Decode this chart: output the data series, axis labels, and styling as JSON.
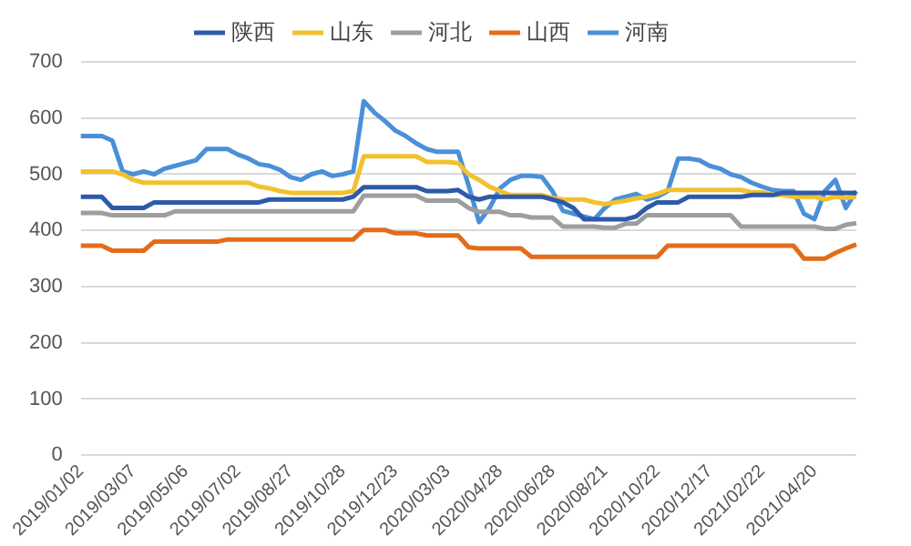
{
  "chart_data": {
    "type": "line",
    "categories": [
      "2019/01/02",
      null,
      null,
      null,
      null,
      "2019/03/07",
      null,
      null,
      null,
      null,
      "2019/05/06",
      null,
      null,
      null,
      null,
      "2019/07/02",
      null,
      null,
      null,
      null,
      "2019/08/27",
      null,
      null,
      null,
      null,
      "2019/10/28",
      null,
      null,
      null,
      null,
      "2019/12/23",
      null,
      null,
      null,
      null,
      "2020/03/03",
      null,
      null,
      null,
      null,
      "2020/04/28",
      null,
      null,
      null,
      null,
      "2020/06/28",
      null,
      null,
      null,
      null,
      "2020/08/21",
      null,
      null,
      null,
      null,
      "2020/10/22",
      null,
      null,
      null,
      null,
      "2020/12/17",
      null,
      null,
      null,
      null,
      "2021/02/22",
      null,
      null,
      null,
      null,
      "2021/04/20",
      null,
      null,
      null,
      null
    ],
    "series": [
      {
        "name": "陕西",
        "color": "#2e5aa8",
        "values": [
          460,
          460,
          460,
          440,
          440,
          440,
          440,
          450,
          450,
          450,
          450,
          450,
          450,
          450,
          450,
          450,
          450,
          450,
          455,
          455,
          455,
          455,
          455,
          455,
          455,
          455,
          460,
          477,
          477,
          477,
          477,
          477,
          477,
          470,
          470,
          470,
          472,
          460,
          455,
          460,
          460,
          460,
          460,
          460,
          460,
          455,
          450,
          440,
          420,
          420,
          420,
          420,
          420,
          425,
          440,
          450,
          450,
          450,
          460,
          460,
          460,
          460,
          460,
          460,
          463,
          463,
          463,
          467,
          467,
          467,
          467,
          467,
          467,
          467,
          467
        ]
      },
      {
        "name": "山东",
        "color": "#f2c12e",
        "values": [
          505,
          505,
          505,
          505,
          500,
          490,
          485,
          485,
          485,
          485,
          485,
          485,
          485,
          485,
          485,
          485,
          485,
          478,
          475,
          470,
          467,
          467,
          467,
          467,
          467,
          467,
          470,
          532,
          532,
          532,
          532,
          532,
          532,
          522,
          522,
          522,
          520,
          500,
          490,
          478,
          470,
          463,
          463,
          463,
          463,
          458,
          455,
          455,
          455,
          450,
          447,
          450,
          453,
          457,
          460,
          465,
          472,
          472,
          472,
          472,
          472,
          472,
          472,
          472,
          468,
          468,
          463,
          463,
          460,
          460,
          460,
          455,
          460,
          458,
          460
        ]
      },
      {
        "name": "河北",
        "color": "#9e9e9e",
        "values": [
          431,
          431,
          431,
          427,
          427,
          427,
          427,
          427,
          427,
          434,
          434,
          434,
          434,
          434,
          434,
          434,
          434,
          434,
          434,
          434,
          434,
          434,
          434,
          434,
          434,
          434,
          434,
          462,
          462,
          462,
          462,
          462,
          462,
          453,
          453,
          453,
          453,
          440,
          433,
          433,
          433,
          427,
          427,
          423,
          423,
          423,
          407,
          407,
          407,
          407,
          405,
          405,
          412,
          412,
          427,
          427,
          427,
          427,
          427,
          427,
          427,
          427,
          427,
          407,
          407,
          407,
          407,
          407,
          407,
          407,
          407,
          403,
          403,
          410,
          413
        ]
      },
      {
        "name": "山西",
        "color": "#e36c1a",
        "values": [
          373,
          373,
          373,
          364,
          364,
          364,
          364,
          380,
          380,
          380,
          380,
          380,
          380,
          380,
          384,
          384,
          384,
          384,
          384,
          384,
          384,
          384,
          384,
          384,
          384,
          384,
          384,
          401,
          401,
          401,
          395,
          395,
          395,
          391,
          391,
          391,
          391,
          370,
          368,
          368,
          368,
          368,
          368,
          353,
          353,
          353,
          353,
          353,
          353,
          353,
          353,
          353,
          353,
          353,
          353,
          353,
          373,
          373,
          373,
          373,
          373,
          373,
          373,
          373,
          373,
          373,
          373,
          373,
          373,
          350,
          350,
          350,
          360,
          368,
          375
        ]
      },
      {
        "name": "河南",
        "color": "#4a90d9",
        "values": [
          568,
          568,
          568,
          560,
          505,
          500,
          505,
          500,
          510,
          515,
          520,
          525,
          545,
          545,
          545,
          535,
          528,
          518,
          515,
          508,
          495,
          490,
          500,
          505,
          497,
          500,
          505,
          630,
          610,
          595,
          578,
          568,
          555,
          545,
          540,
          540,
          540,
          480,
          415,
          440,
          475,
          490,
          497,
          497,
          495,
          470,
          435,
          430,
          425,
          420,
          440,
          455,
          460,
          465,
          455,
          460,
          470,
          528,
          528,
          525,
          515,
          510,
          500,
          495,
          485,
          478,
          472,
          470,
          470,
          430,
          420,
          470,
          490,
          440,
          470
        ]
      }
    ],
    "ylim": [
      0,
      700
    ],
    "yticks": [
      0,
      100,
      200,
      300,
      400,
      500,
      600,
      700
    ],
    "grid": "y",
    "legend": "top",
    "marker": "none",
    "line_style": "solid"
  }
}
